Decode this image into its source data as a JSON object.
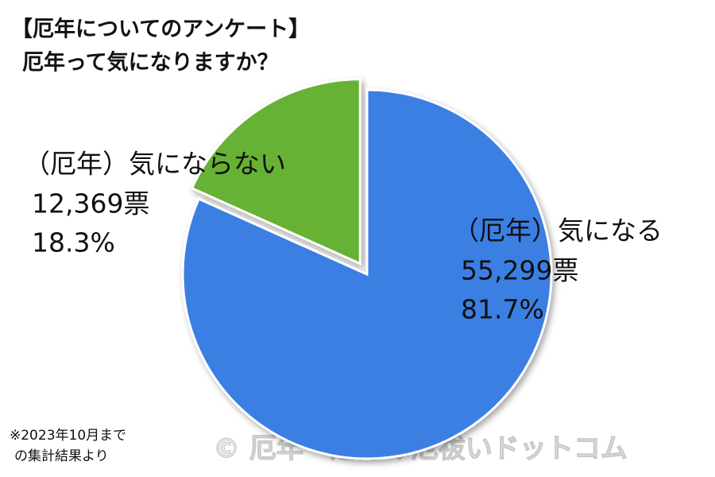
{
  "chart_data": {
    "type": "pie",
    "title": "【厄年についてのアンケート】",
    "subtitle": "厄年って気になりますか？",
    "categories": [
      "（厄年）気になる",
      "（厄年）気にならない"
    ],
    "values": [
      81.7,
      18.3
    ],
    "value_labels": [
      "81.7%",
      "18.3%"
    ],
    "vote_labels": [
      "55,299票",
      "12,369票"
    ],
    "colors": [
      "#3b7fe3",
      "#66b234"
    ],
    "exploded": [
      false,
      true
    ],
    "footnote": [
      "※2023年10月まで",
      "の集計結果より"
    ],
    "watermark": "© 厄年・厄除け厄祓いドットコム"
  }
}
